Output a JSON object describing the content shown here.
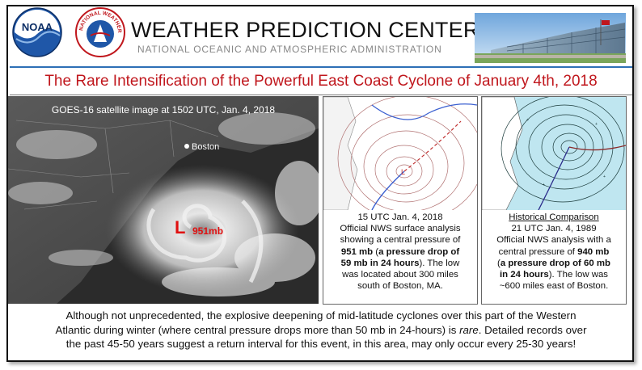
{
  "header": {
    "title": "WEATHER PREDICTION CENTER",
    "subtitle": "NATIONAL OCEANIC AND ATMOSPHERIC ADMINISTRATION",
    "noaa_logo_text": "NOAA",
    "nws_logo_text": "NATIONAL WEATHER SERVICE",
    "building_image": "building-photo"
  },
  "main_title": "The Rare Intensification of the Powerful East Coast Cyclone of January 4th, 2018",
  "satellite": {
    "caption": "GOES-16 satellite image at 1502 UTC, Jan. 4, 2018",
    "city_label": "Boston",
    "low_marker": "L",
    "pressure_label": "951mb"
  },
  "panel_2018": {
    "line1": "15 UTC Jan. 4, 2018",
    "line2": "Official NWS surface analysis",
    "line3": "showing a central pressure of",
    "bold1": "951 mb",
    "paren_open": " (",
    "bold2": "a pressure drop of",
    "bold3": "59 mb in 24 hours",
    "after_bold3": "). The low",
    "line6": "was located about 300 miles",
    "line7": "south of Boston, MA."
  },
  "panel_1989": {
    "heading": "Historical Comparison",
    "line2": "21 UTC Jan. 4, 1989",
    "line3": "Official NWS analysis with a",
    "line4_pre": "central pressure of ",
    "bold1": "940 mb",
    "paren_open": "(",
    "bold2": "a pressure drop of 60 mb",
    "bold3": "in 24 hours",
    "after_bold3": "). The low was",
    "line7": "~600 miles east of Boston."
  },
  "footer": {
    "line1": "Although not unprecedented, the explosive deepening of mid-latitude cyclones over this part of the Western",
    "line2a": "Atlantic during winter (where central pressure drops more than 50 mb in 24-hours) is ",
    "rare": "rare",
    "line2b": ". Detailed records over",
    "line3": "the past 45-50 years suggest a return interval for this event, in this area, may only occur every 25-30 years!"
  },
  "colors": {
    "title_red": "#c0171d",
    "rule_blue": "#2d6fb6",
    "subtitle_gray": "#888888"
  }
}
